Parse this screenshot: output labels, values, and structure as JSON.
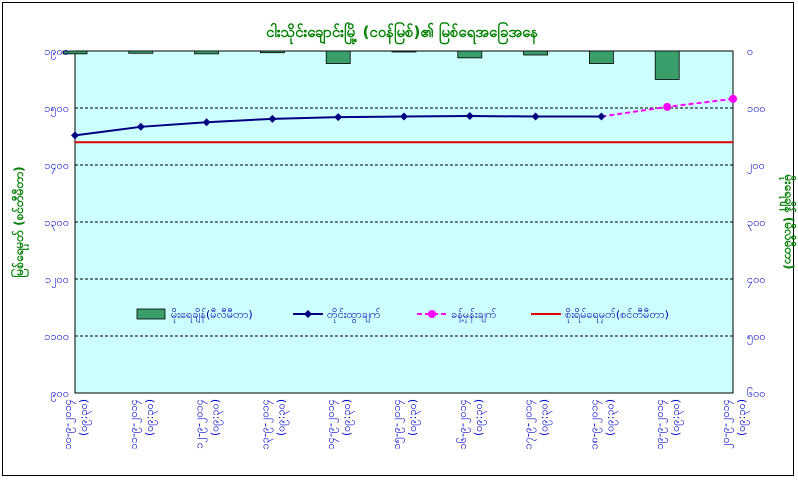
{
  "chart_data": {
    "type": "bar+line",
    "title": "ငါးသိုင်းချောင်းမြို့ (ငဝန်မြစ်)၏ မြစ်ရေအခြေအနေ",
    "ylabel_left": "မြစ်ရေမှတ် (စင်တီမီတာ)",
    "ylabel_right": "မိုးရေချိန် (မီလီမီတာ)",
    "ylim_left": [
      900,
      1900
    ],
    "yticks_left": [
      "၉၀၀",
      "၁၀၀၀",
      "၁၁၀၀",
      "၁၂၀၀",
      "၁၃၀၀",
      "၁၄၀၀",
      "၁၅၀၀",
      "၁၉၀၀"
    ],
    "ylim_right": [
      0,
      600
    ],
    "yticks_right": [
      "၀",
      "၁၀၀",
      "၂၀၀",
      "၃၀၀",
      "၄၀၀",
      "၅၀၀",
      "၆၀၀"
    ],
    "yticks_right_inverted": true,
    "categories": [
      {
        "date": "၁၀-၉-၂၀၁၄",
        "time": "(၀၉:၃၀)"
      },
      {
        "date": "၁၁-၉-၂၀၁၄",
        "time": "(၀၉:၃၀)"
      },
      {
        "date": "၁၂-၉-၂၀၁၄",
        "time": "(၀၉:၃၀)"
      },
      {
        "date": "၁၃-၉-၂၀၁၄",
        "time": "(၀၉:၃၀)"
      },
      {
        "date": "၁၄-၉-၂၀၁၄",
        "time": "(၀၉:၃၀)"
      },
      {
        "date": "၁၅-၉-၂၀၁၄",
        "time": "(၀၉:၃၀)"
      },
      {
        "date": "၁၆-၉-၂၀၁၄",
        "time": "(၀၉:၃၀)"
      },
      {
        "date": "၁၇-၉-၂၀၁၄",
        "time": "(၀၉:၃၀)"
      },
      {
        "date": "၁၈-၉-၂၀၁၄",
        "time": "(၀၉:၃၀)"
      },
      {
        "date": "၁၉-၉-၂၀၁၄",
        "time": "(၀၉:၃၀)"
      },
      {
        "date": "၂၀-၉-၂၀၁၄",
        "time": "(၀၉:၃၀)"
      }
    ],
    "series": [
      {
        "name": "မိုးရေချိန်(မီလီမီတာ)",
        "kind": "bar",
        "axis": "right",
        "color": "#3a9e6a",
        "values": [
          5,
          4,
          5,
          3,
          22,
          0.5,
          12,
          7,
          22,
          50,
          null
        ]
      },
      {
        "name": "တိုင်းထွာချက်",
        "kind": "line",
        "axis": "left",
        "color": "#000080",
        "values": [
          1352,
          1367,
          1375,
          1381,
          1384,
          1385,
          1386,
          1385,
          1385,
          null,
          null
        ]
      },
      {
        "name": "ခန့်မှန်းချက်",
        "kind": "dashed-line",
        "axis": "left",
        "color": "#ff00ff",
        "values": [
          null,
          null,
          null,
          null,
          null,
          null,
          null,
          null,
          null,
          1402,
          1416
        ]
      },
      {
        "name": "စိုးရိမ်ရေမှတ်(စင်တီမီတာ)",
        "kind": "hline",
        "axis": "left",
        "color": "#e00000",
        "value": 1340
      }
    ],
    "grid": "horizontal-dashed",
    "legend_position": "inside-lower"
  }
}
